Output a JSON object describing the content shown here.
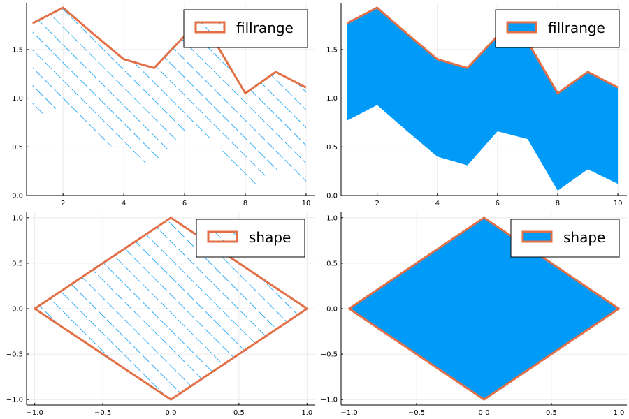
{
  "colors": {
    "fill": "#009af9",
    "line": "#e26f46",
    "grid": "#e6e6e6",
    "axis": "#000000"
  },
  "chart_data": [
    {
      "type": "area",
      "fill_style": "hatched",
      "title": "",
      "xlabel": "",
      "ylabel": "",
      "xlim": [
        0.8,
        10.3
      ],
      "ylim": [
        0,
        1.98
      ],
      "xticks": [
        2,
        4,
        6,
        8,
        10
      ],
      "yticks": [
        0.0,
        0.5,
        1.0,
        1.5
      ],
      "xtick_labels": [
        "2",
        "4",
        "6",
        "8",
        "10"
      ],
      "ytick_labels": [
        "0.0",
        "0.5",
        "1.0",
        "1.5"
      ],
      "grid": true,
      "legend": {
        "position": "top-right",
        "entries": [
          {
            "label": "fillrange",
            "style": "hatched"
          }
        ]
      },
      "x": [
        1,
        2,
        3,
        4,
        5,
        6,
        7,
        8,
        9,
        10
      ],
      "upper": [
        1.77,
        1.93,
        1.66,
        1.4,
        1.31,
        1.64,
        1.58,
        1.05,
        1.27,
        1.11
      ],
      "lower": [
        0.77,
        0.93,
        0.66,
        0.4,
        0.31,
        0.66,
        0.58,
        0.05,
        0.27,
        0.12
      ]
    },
    {
      "type": "area",
      "fill_style": "solid",
      "title": "",
      "xlabel": "",
      "ylabel": "",
      "xlim": [
        0.8,
        10.3
      ],
      "ylim": [
        0,
        1.98
      ],
      "xticks": [
        2,
        4,
        6,
        8,
        10
      ],
      "yticks": [
        0.0,
        0.5,
        1.0,
        1.5
      ],
      "xtick_labels": [
        "2",
        "4",
        "6",
        "8",
        "10"
      ],
      "ytick_labels": [
        "0.0",
        "0.5",
        "1.0",
        "1.5"
      ],
      "grid": true,
      "legend": {
        "position": "top-right",
        "entries": [
          {
            "label": "fillrange",
            "style": "solid"
          }
        ]
      },
      "x": [
        1,
        2,
        3,
        4,
        5,
        6,
        7,
        8,
        9,
        10
      ],
      "upper": [
        1.77,
        1.93,
        1.66,
        1.4,
        1.31,
        1.64,
        1.58,
        1.05,
        1.27,
        1.11
      ],
      "lower": [
        0.77,
        0.93,
        0.66,
        0.4,
        0.31,
        0.66,
        0.58,
        0.05,
        0.27,
        0.12
      ]
    },
    {
      "type": "shape",
      "fill_style": "hatched",
      "title": "",
      "xlabel": "",
      "ylabel": "",
      "xlim": [
        -1.06,
        1.06
      ],
      "ylim": [
        -1.06,
        1.06
      ],
      "xticks": [
        -1.0,
        -0.5,
        0.0,
        0.5,
        1.0
      ],
      "yticks": [
        -1.0,
        -0.5,
        0.0,
        0.5,
        1.0
      ],
      "xtick_labels": [
        "−1.0",
        "−0.5",
        "0.0",
        "0.5",
        "1.0"
      ],
      "ytick_labels": [
        "−1.0",
        "−0.5",
        "0.0",
        "0.5",
        "1.0"
      ],
      "grid": true,
      "legend": {
        "position": "top-right",
        "entries": [
          {
            "label": "shape",
            "style": "hatched"
          }
        ]
      },
      "vertices": [
        [
          -1,
          0
        ],
        [
          0,
          1
        ],
        [
          1,
          0
        ],
        [
          0,
          -1
        ]
      ]
    },
    {
      "type": "shape",
      "fill_style": "solid",
      "title": "",
      "xlabel": "",
      "ylabel": "",
      "xlim": [
        -1.06,
        1.06
      ],
      "ylim": [
        -1.06,
        1.06
      ],
      "xticks": [
        -1.0,
        -0.5,
        0.0,
        0.5,
        1.0
      ],
      "yticks": [
        -1.0,
        -0.5,
        0.0,
        0.5,
        1.0
      ],
      "xtick_labels": [
        "−1.0",
        "−0.5",
        "0.0",
        "0.5",
        "1.0"
      ],
      "ytick_labels": [
        "−1.0",
        "−0.5",
        "0.0",
        "0.5",
        "1.0"
      ],
      "grid": true,
      "legend": {
        "position": "top-right",
        "entries": [
          {
            "label": "shape",
            "style": "solid"
          }
        ]
      },
      "vertices": [
        [
          -1,
          0
        ],
        [
          0,
          1
        ],
        [
          1,
          0
        ],
        [
          0,
          -1
        ]
      ]
    }
  ]
}
